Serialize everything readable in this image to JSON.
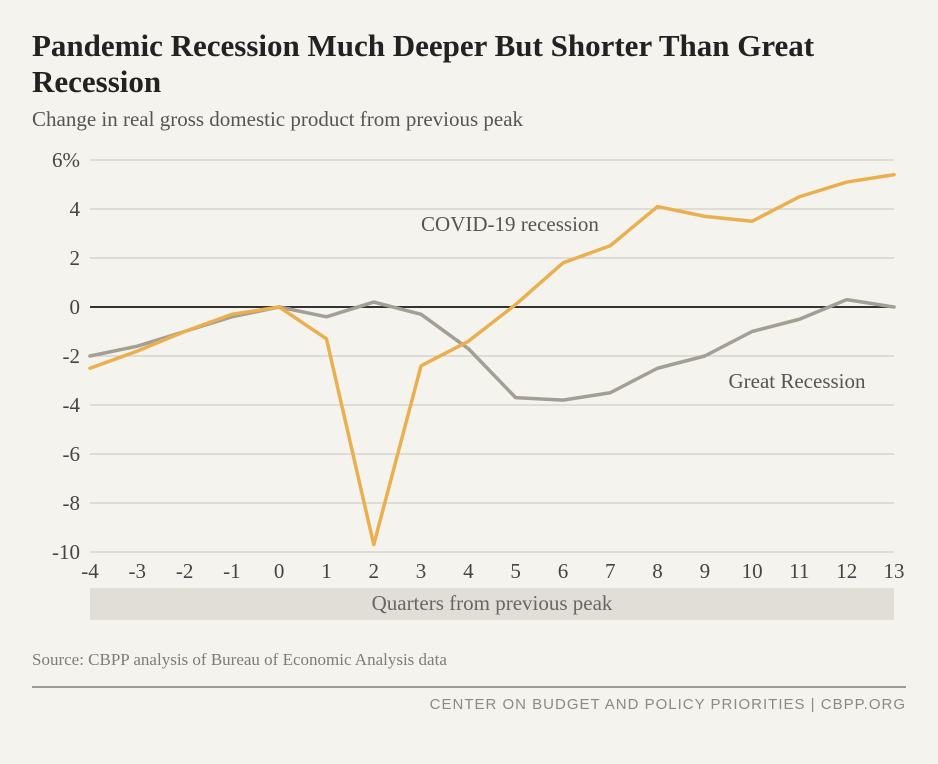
{
  "title": "Pandemic Recession Much Deeper But Shorter Than Great Recession",
  "subtitle": "Change in real gross domestic product from previous peak",
  "source": "Source: CBPP analysis of Bureau of Economic Analysis data",
  "footer": "CENTER ON BUDGET AND POLICY PRIORITIES | CBPP.ORG",
  "chart": {
    "type": "line",
    "background_color": "#f5f3ee",
    "xlim": [
      -4,
      13
    ],
    "ylim": [
      -10,
      6
    ],
    "ytick_step": 2,
    "y_ticks": [
      6,
      4,
      2,
      0,
      -2,
      -4,
      -6,
      -8,
      -10
    ],
    "y_tick_labels": [
      "6%",
      "4",
      "2",
      "0",
      "-2",
      "-4",
      "-6",
      "-8",
      "-10"
    ],
    "x_ticks": [
      -4,
      -3,
      -2,
      -1,
      0,
      1,
      2,
      3,
      4,
      5,
      6,
      7,
      8,
      9,
      10,
      11,
      12,
      13
    ],
    "x_axis_title": "Quarters from previous peak",
    "x_axis_band_bg": "#e0ded7",
    "grid_color": "#c7c5bd",
    "zero_line_color": "#333333",
    "line_width": 3.5,
    "series": [
      {
        "name": "COVID-19 recession",
        "label": "COVID-19 recession",
        "color": "#eab04f",
        "label_pos": {
          "x": 3.0,
          "y": 3.1
        },
        "data": [
          {
            "x": -4,
            "y": -2.5
          },
          {
            "x": -3,
            "y": -1.8
          },
          {
            "x": -2,
            "y": -1.0
          },
          {
            "x": -1,
            "y": -0.3
          },
          {
            "x": 0,
            "y": 0.0
          },
          {
            "x": 1,
            "y": -1.3
          },
          {
            "x": 2,
            "y": -9.7
          },
          {
            "x": 3,
            "y": -2.4
          },
          {
            "x": 4,
            "y": -1.4
          },
          {
            "x": 5,
            "y": 0.1
          },
          {
            "x": 6,
            "y": 1.8
          },
          {
            "x": 7,
            "y": 2.5
          },
          {
            "x": 8,
            "y": 4.1
          },
          {
            "x": 9,
            "y": 3.7
          },
          {
            "x": 10,
            "y": 3.5
          },
          {
            "x": 11,
            "y": 4.5
          },
          {
            "x": 12,
            "y": 5.1
          },
          {
            "x": 13,
            "y": 5.4
          }
        ]
      },
      {
        "name": "Great Recession",
        "label": "Great Recession",
        "color": "#a39f94",
        "label_pos": {
          "x": 9.5,
          "y": -3.3
        },
        "data": [
          {
            "x": -4,
            "y": -2.0
          },
          {
            "x": -3,
            "y": -1.6
          },
          {
            "x": -2,
            "y": -1.0
          },
          {
            "x": -1,
            "y": -0.4
          },
          {
            "x": 0,
            "y": 0.0
          },
          {
            "x": 1,
            "y": -0.4
          },
          {
            "x": 2,
            "y": 0.2
          },
          {
            "x": 3,
            "y": -0.3
          },
          {
            "x": 4,
            "y": -1.7
          },
          {
            "x": 5,
            "y": -3.7
          },
          {
            "x": 6,
            "y": -3.8
          },
          {
            "x": 7,
            "y": -3.5
          },
          {
            "x": 8,
            "y": -2.5
          },
          {
            "x": 9,
            "y": -2.0
          },
          {
            "x": 10,
            "y": -1.0
          },
          {
            "x": 11,
            "y": -0.5
          },
          {
            "x": 12,
            "y": 0.3
          },
          {
            "x": 13,
            "y": 0.0
          }
        ]
      }
    ]
  }
}
